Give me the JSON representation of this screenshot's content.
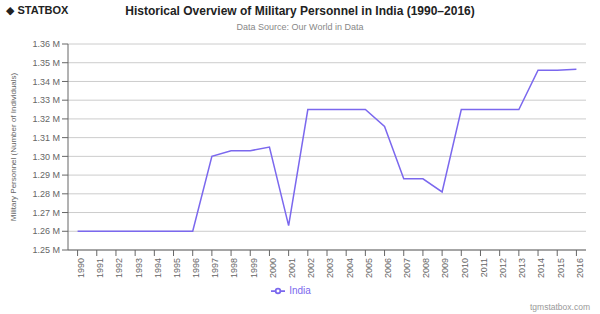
{
  "chart_data": {
    "type": "line",
    "title": "Historical Overview of Military Personnel in India (1990–2016)",
    "subtitle": "Data Source: Our World in Data",
    "ylabel": "Military Personnel (Number of Individuals)",
    "annotations": [
      "◆ STATBOX",
      "tgmstatbox.com"
    ],
    "x": [
      1990,
      1991,
      1992,
      1993,
      1994,
      1995,
      1996,
      1997,
      1998,
      1999,
      2000,
      2001,
      2002,
      2003,
      2004,
      2005,
      2006,
      2007,
      2008,
      2009,
      2010,
      2011,
      2012,
      2013,
      2014,
      2015,
      2016
    ],
    "series": [
      {
        "name": "India",
        "color": "#7B68EE",
        "values": [
          1260000,
          1260000,
          1260000,
          1260000,
          1260000,
          1260000,
          1260000,
          1300000,
          1303000,
          1303000,
          1305000,
          1263000,
          1325000,
          1325000,
          1325000,
          1325000,
          1316000,
          1288000,
          1288000,
          1281000,
          1325000,
          1325000,
          1325000,
          1325000,
          1346000,
          1346000,
          1346500
        ]
      }
    ],
    "xlim": [
      1989.5,
      2016.5
    ],
    "xticks": [
      1990,
      1991,
      1992,
      1993,
      1994,
      1995,
      1996,
      1997,
      1998,
      1999,
      2000,
      2001,
      2002,
      2003,
      2004,
      2005,
      2006,
      2007,
      2008,
      2009,
      2010,
      2011,
      2012,
      2013,
      2014,
      2015,
      2016
    ],
    "ylim": [
      1250000,
      1360000
    ],
    "yticks": [
      {
        "value": 1250000,
        "label": "1.25 M"
      },
      {
        "value": 1260000,
        "label": "1.26 M"
      },
      {
        "value": 1270000,
        "label": "1.27 M"
      },
      {
        "value": 1280000,
        "label": "1.28 M"
      },
      {
        "value": 1290000,
        "label": "1.29 M"
      },
      {
        "value": 1300000,
        "label": "1.30 M"
      },
      {
        "value": 1310000,
        "label": "1.31 M"
      },
      {
        "value": 1320000,
        "label": "1.32 M"
      },
      {
        "value": 1330000,
        "label": "1.33 M"
      },
      {
        "value": 1340000,
        "label": "1.34 M"
      },
      {
        "value": 1350000,
        "label": "1.35 M"
      },
      {
        "value": 1360000,
        "label": "1.36 M"
      }
    ],
    "grid": true,
    "legend": "bottom"
  }
}
